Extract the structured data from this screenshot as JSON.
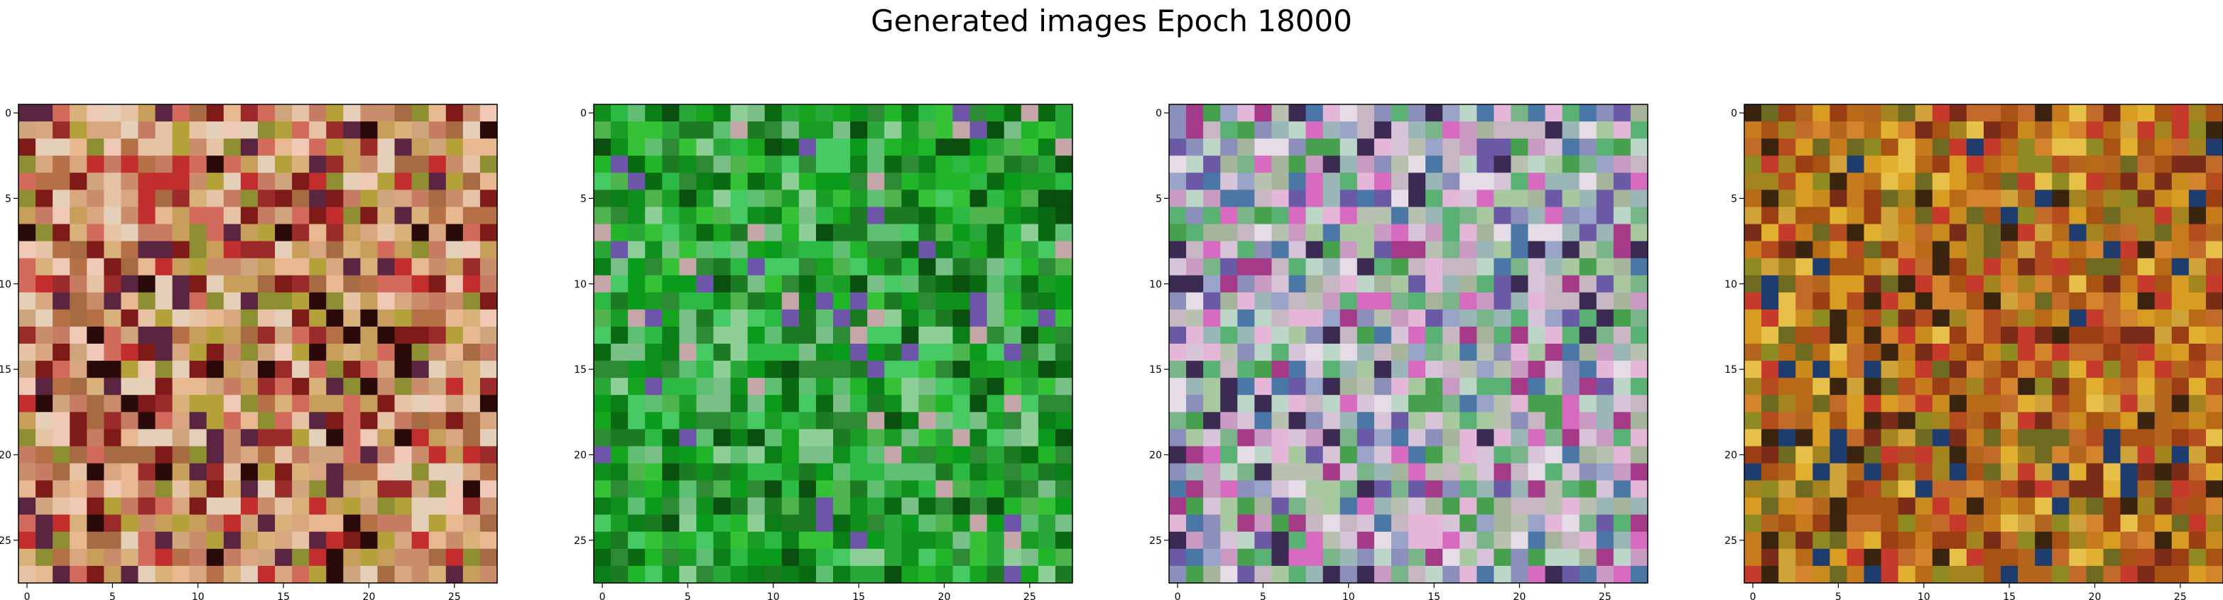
{
  "title": "Generated images Epoch 18000",
  "chart_data": {
    "type": "heatmap",
    "title": "Generated images Epoch 18000",
    "grid_size": 28,
    "xlim": [
      -0.5,
      27.5
    ],
    "ylim": [
      27.5,
      -0.5
    ],
    "xticks": [
      "0",
      "5",
      "10",
      "15",
      "20",
      "25"
    ],
    "yticks": [
      "0",
      "5",
      "10",
      "15",
      "20",
      "25"
    ],
    "grid": false,
    "panels": [
      {
        "palette": [
          "#d9a77f",
          "#e7c3a6",
          "#c98d6c",
          "#b57145",
          "#d9b17a",
          "#f0c9b6",
          "#a66b42",
          "#c67c63",
          "#cfa57d",
          "#7e1a18",
          "#2a0a08",
          "#9b2b2a",
          "#b5a13a",
          "#e4d0b8",
          "#5a2540",
          "#c79f5a",
          "#d36b5c",
          "#e8b991",
          "#c22e2e",
          "#8e8f33"
        ],
        "dark_center": true
      },
      {
        "palette": [
          "#0f8f1b",
          "#16a41f",
          "#21b52a",
          "#0c7e18",
          "#2aa739",
          "#36c237",
          "#0a6a12",
          "#4fb34e",
          "#1a9d24",
          "#47c964",
          "#0a4f0f",
          "#2f8a35",
          "#5fbf73",
          "#1b7a22",
          "#8ecf97",
          "#2cb944",
          "#7bbf88",
          "#c5a7a9",
          "#6d55a8",
          "#0b9b1c"
        ],
        "dark_center": true
      },
      {
        "palette": [
          "#c6b7c2",
          "#9aa3c8",
          "#b8c0b0",
          "#d8c4d8",
          "#a7b49c",
          "#e5dce6",
          "#8b8fb9",
          "#c99bc3",
          "#7ab58a",
          "#47a04d",
          "#6a5aa6",
          "#3b2a52",
          "#d66bc0",
          "#9bb6b6",
          "#4a77a6",
          "#a53a88",
          "#e4b7d8",
          "#bcd6c8",
          "#5ab174",
          "#a8c9a0"
        ],
        "dark_center": false
      },
      {
        "palette": [
          "#c98a1e",
          "#d99c22",
          "#b96a16",
          "#a85214",
          "#d0a33a",
          "#c77b1c",
          "#9b3e14",
          "#e1b030",
          "#8f8a22",
          "#b44c1f",
          "#7a2c18",
          "#c26a2a",
          "#3a2410",
          "#d4842c",
          "#a4841e",
          "#c53a2a",
          "#6e6a22",
          "#1e3c6e",
          "#e7c04a",
          "#b5661e"
        ],
        "dark_center": true
      }
    ]
  }
}
